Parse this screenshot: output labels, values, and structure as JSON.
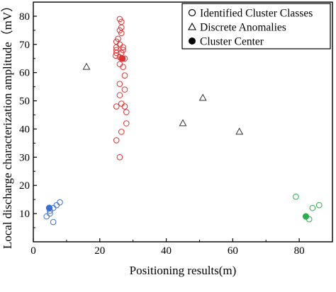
{
  "chart_data": {
    "type": "scatter",
    "xlabel": "Positioning results(m)",
    "ylabel": "Local discharge characterization amplitude（mV）",
    "xlim": [
      0,
      90
    ],
    "ylim": [
      0,
      85
    ],
    "xticks": [
      "0",
      "20",
      "40",
      "60",
      "80"
    ],
    "yticks": [
      "10",
      "20",
      "30",
      "40",
      "50",
      "60",
      "70",
      "80"
    ],
    "legend": {
      "position": "top-right",
      "entries": [
        {
          "label": "Identified Cluster Classes",
          "marker": "open-circle"
        },
        {
          "label": "Discrete Anomalies",
          "marker": "open-triangle"
        },
        {
          "label": "Cluster Center",
          "marker": "filled-circle"
        }
      ]
    },
    "colors": {
      "cluster_blue": "#3a6fd8",
      "cluster_red": "#e03030",
      "cluster_green": "#2ab04a",
      "anomaly": "#333333",
      "legend": "#000000"
    },
    "series": [
      {
        "kind": "cluster",
        "color": "cluster_blue",
        "points": [
          [
            4,
            9
          ],
          [
            5,
            10
          ],
          [
            6,
            12
          ],
          [
            5,
            11
          ],
          [
            7,
            13
          ],
          [
            8,
            14
          ],
          [
            6,
            7
          ]
        ],
        "center": [
          4.8,
          12
        ]
      },
      {
        "kind": "cluster",
        "color": "cluster_red",
        "points": [
          [
            26,
            79
          ],
          [
            26.5,
            78
          ],
          [
            26.5,
            76
          ],
          [
            26,
            75
          ],
          [
            26.5,
            74
          ],
          [
            25.5,
            72
          ],
          [
            25,
            71
          ],
          [
            25,
            69
          ],
          [
            26,
            70
          ],
          [
            27,
            69
          ],
          [
            25,
            68
          ],
          [
            26.5,
            67
          ],
          [
            27,
            68
          ],
          [
            25,
            67
          ],
          [
            24.8,
            66
          ],
          [
            26,
            65.5
          ],
          [
            26.5,
            65
          ],
          [
            27.5,
            65
          ],
          [
            26,
            63
          ],
          [
            27,
            62
          ],
          [
            27.5,
            59
          ],
          [
            26,
            56
          ],
          [
            27.5,
            54
          ],
          [
            26,
            52
          ],
          [
            26.5,
            49
          ],
          [
            25,
            48
          ],
          [
            27.5,
            48
          ],
          [
            28,
            46
          ],
          [
            28,
            42
          ],
          [
            26.5,
            39
          ],
          [
            25,
            36
          ],
          [
            26,
            30
          ]
        ],
        "center": [
          26.8,
          65
        ]
      },
      {
        "kind": "cluster",
        "color": "cluster_green",
        "points": [
          [
            79,
            16
          ],
          [
            84,
            12
          ],
          [
            86,
            13
          ],
          [
            83,
            8
          ]
        ],
        "center": [
          82,
          9
        ]
      },
      {
        "kind": "anomaly",
        "color": "anomaly",
        "points": [
          [
            16,
            62
          ],
          [
            51,
            51
          ],
          [
            45,
            42
          ],
          [
            62,
            39
          ]
        ]
      }
    ]
  }
}
